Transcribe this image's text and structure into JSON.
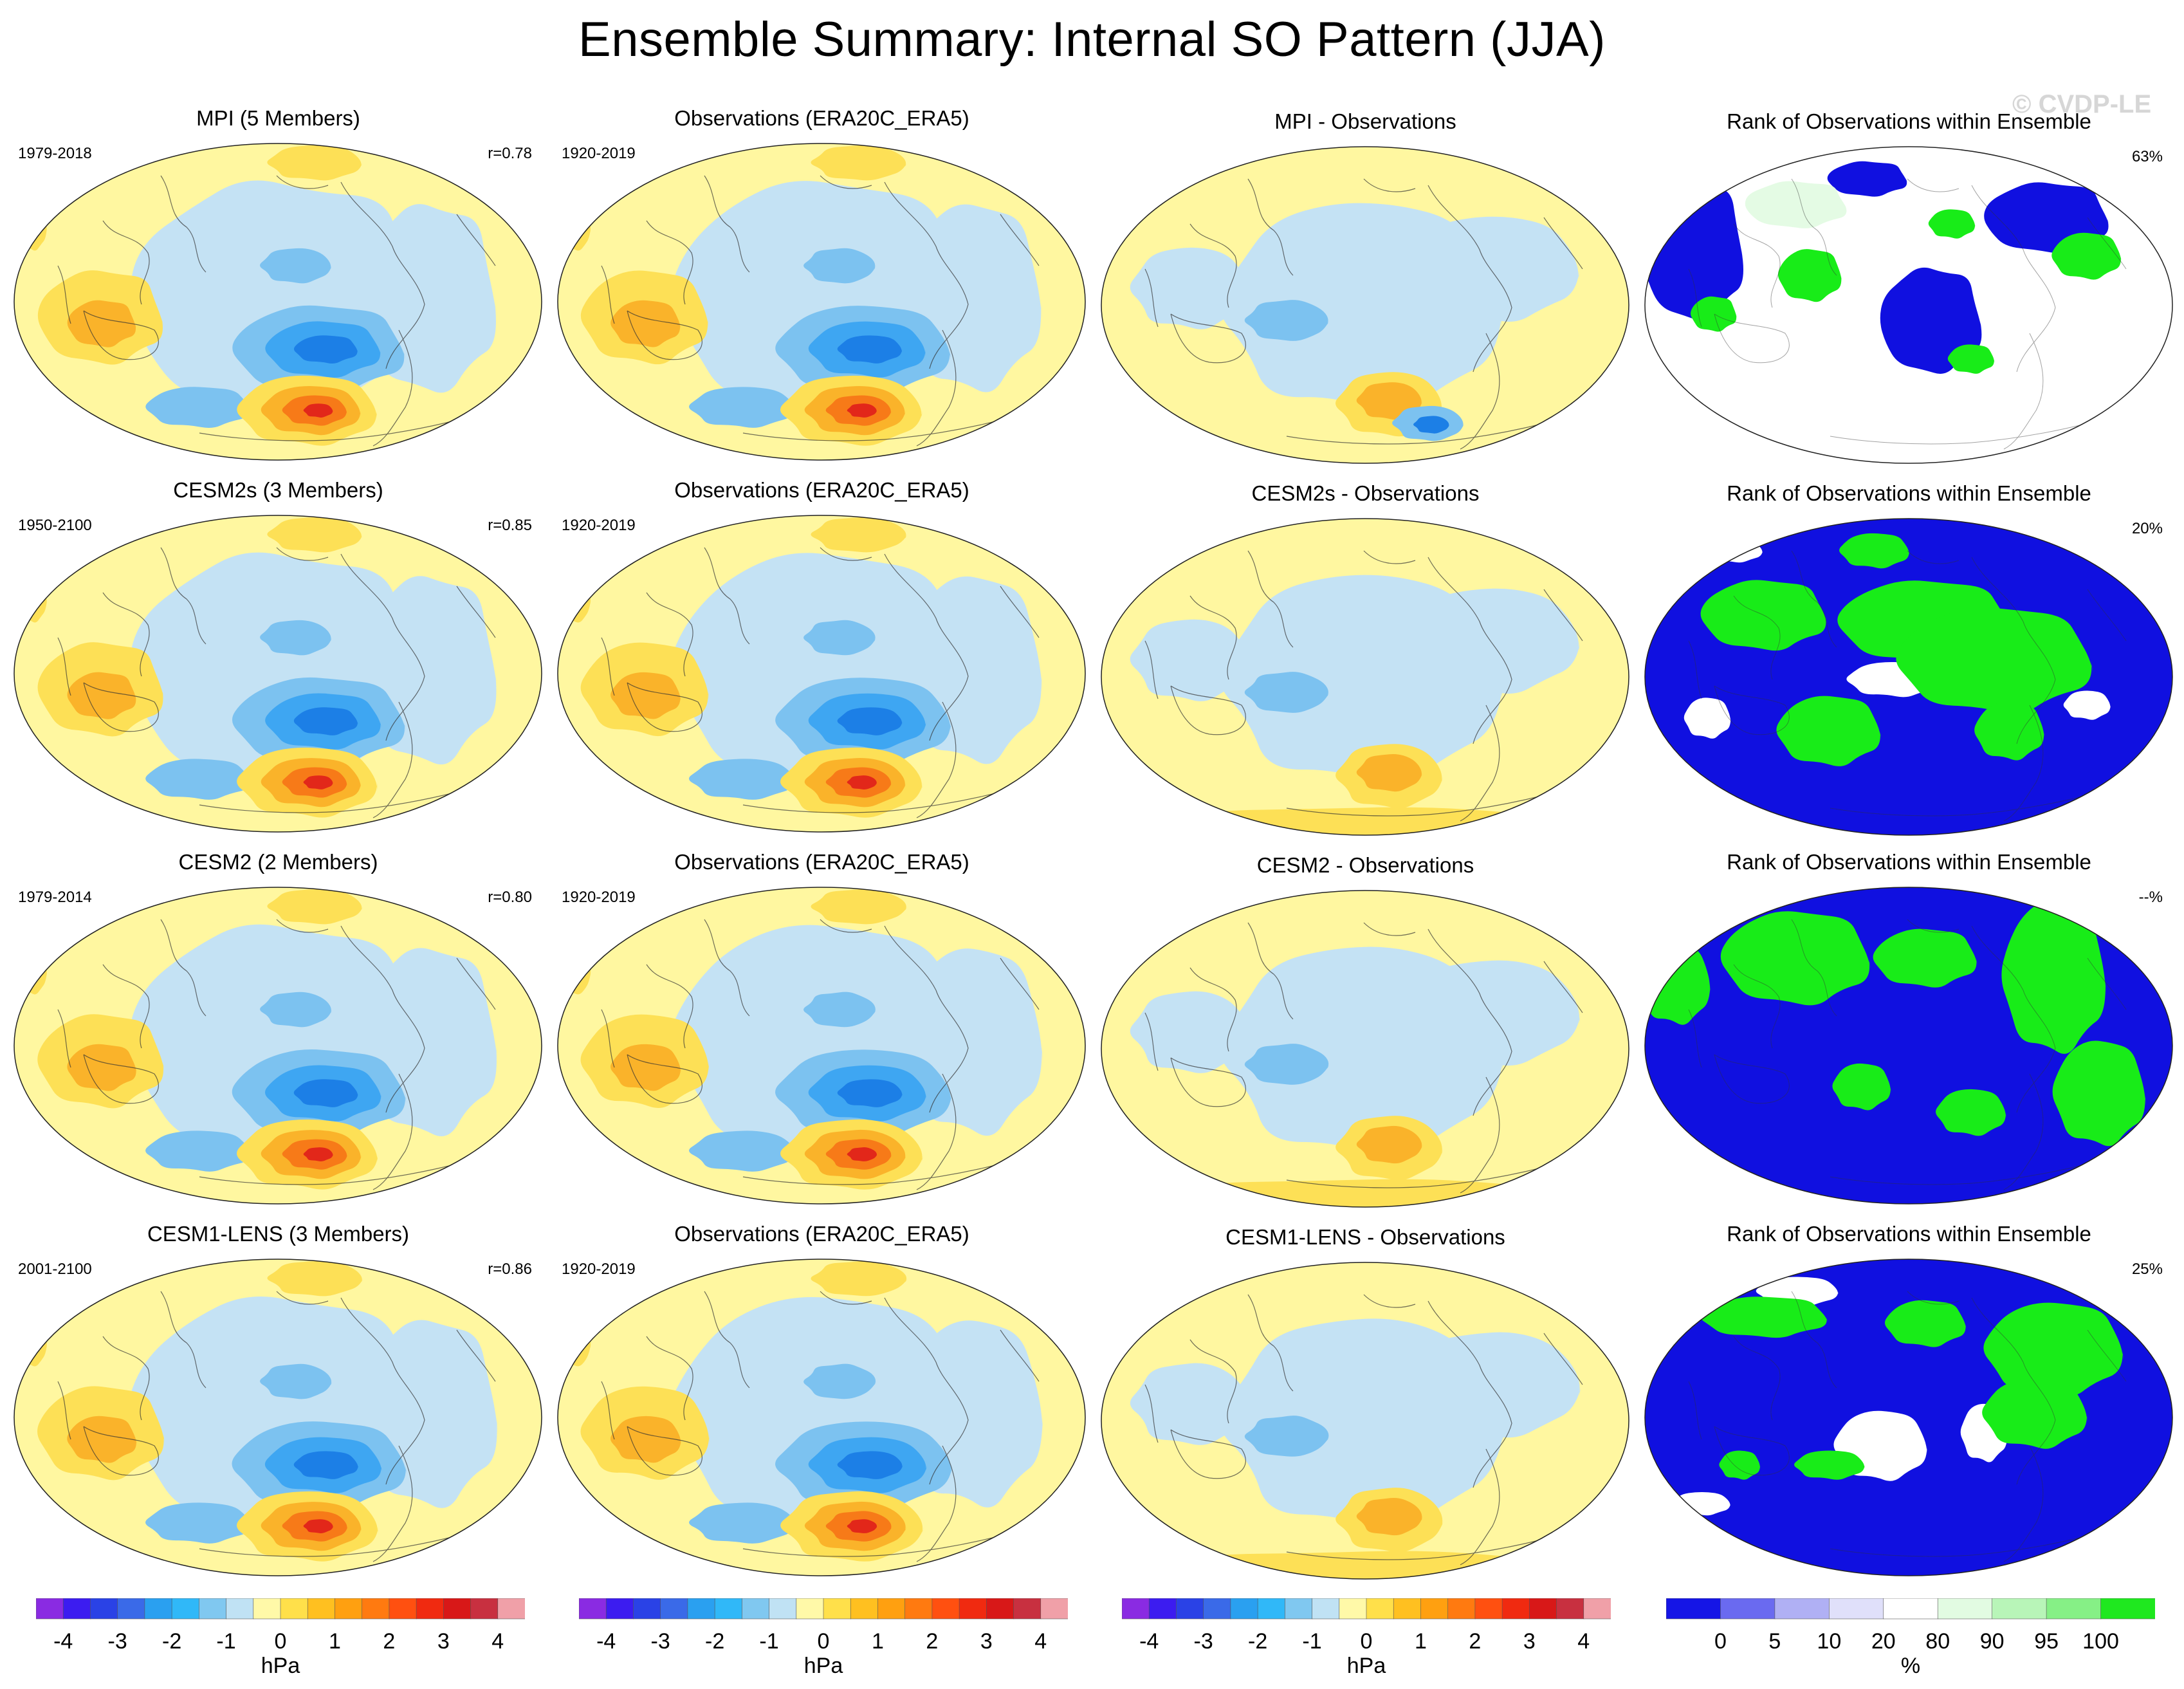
{
  "title": "Ensemble Summary: Internal SO Pattern (JJA)",
  "watermark": "© CVDP-LE",
  "rows": [
    {
      "model": {
        "title": "MPI (5 Members)",
        "left": "1979-2018",
        "right": "r=0.78"
      },
      "obs": {
        "title": "Observations (ERA20C_ERA5)",
        "left": "1920-2019"
      },
      "diff": {
        "title": "MPI - Observations"
      },
      "rank": {
        "title": "Rank of Observations within Ensemble",
        "right": "63%"
      }
    },
    {
      "model": {
        "title": "CESM2s (3 Members)",
        "left": "1950-2100",
        "right": "r=0.85"
      },
      "obs": {
        "title": "Observations (ERA20C_ERA5)",
        "left": "1920-2019"
      },
      "diff": {
        "title": "CESM2s - Observations"
      },
      "rank": {
        "title": "Rank of Observations within Ensemble",
        "right": "20%"
      }
    },
    {
      "model": {
        "title": "CESM2 (2 Members)",
        "left": "1979-2014",
        "right": "r=0.80"
      },
      "obs": {
        "title": "Observations (ERA20C_ERA5)",
        "left": "1920-2019"
      },
      "diff": {
        "title": "CESM2 - Observations"
      },
      "rank": {
        "title": "Rank of Observations within Ensemble",
        "right": "--%"
      }
    },
    {
      "model": {
        "title": "CESM1-LENS (3 Members)",
        "left": "2001-2100",
        "right": "r=0.86"
      },
      "obs": {
        "title": "Observations (ERA20C_ERA5)",
        "left": "1920-2019"
      },
      "diff": {
        "title": "CESM1-LENS - Observations"
      },
      "rank": {
        "title": "Rank of Observations within Ensemble",
        "right": "25%"
      }
    }
  ],
  "colorbar_hpa": {
    "units": "hPa",
    "ticks": [
      "-4",
      "-3",
      "-2",
      "-1",
      "0",
      "1",
      "2",
      "3",
      "4"
    ],
    "colors": [
      "#8a2be2",
      "#3c1cf0",
      "#2a42e6",
      "#3a6ae8",
      "#2aa0f0",
      "#30b8f8",
      "#80c8f0",
      "#c0e2f4",
      "#fff9a8",
      "#ffe04a",
      "#ffc020",
      "#ffa010",
      "#ff7a10",
      "#ff5010",
      "#f02a10",
      "#d81818",
      "#c83040",
      "#f0a0a8"
    ]
  },
  "colorbar_rank": {
    "units": "%",
    "ticks": [
      "0",
      "5",
      "10",
      "20",
      "80",
      "90",
      "95",
      "100"
    ],
    "colors": [
      "#1515e6",
      "#6a6af0",
      "#b0b0f4",
      "#e0e0fa",
      "#ffffff",
      "#e2fbe2",
      "#b8f5b8",
      "#86f086",
      "#1fe81f"
    ]
  },
  "palette": {
    "ocean_neutral": "#fff7a0",
    "neg1": "#c4e2f4",
    "neg2": "#7cc2f0",
    "neg3": "#3ea6f2",
    "neg4": "#1c7fe6",
    "pos1": "#fde056",
    "pos2": "#fab32a",
    "pos3": "#f77a18",
    "pos4": "#e2271a",
    "rank_blue": "#1010e0",
    "rank_green": "#18ec18",
    "rank_white": "#ffffff",
    "rank_paleGreen": "#e4fbe4",
    "coast": "#333333"
  }
}
